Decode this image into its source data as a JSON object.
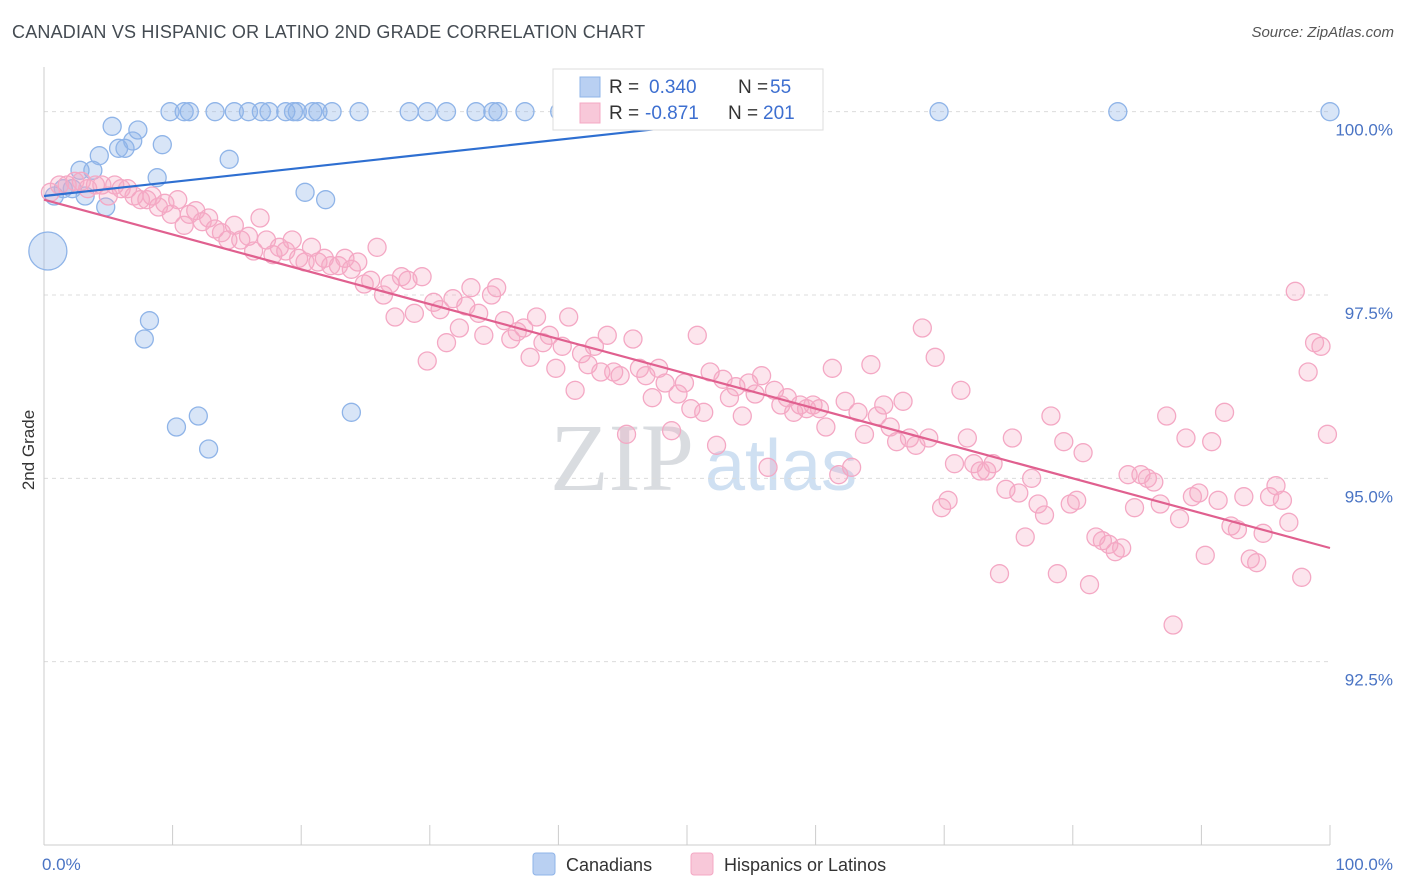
{
  "title": "CANADIAN VS HISPANIC OR LATINO 2ND GRADE CORRELATION CHART",
  "source": "Source: ZipAtlas.com",
  "watermark": {
    "zip": "ZIP",
    "atlas": "atlas"
  },
  "chart_data": {
    "type": "scatter",
    "ylabel": "2nd Grade",
    "xlim": [
      0,
      100
    ],
    "ylim": [
      90.0,
      100.5
    ],
    "x_tick_labels": [
      {
        "value": 0,
        "label": "0.0%"
      },
      {
        "value": 100,
        "label": "100.0%"
      }
    ],
    "y_ticks": [
      {
        "value": 100.0,
        "label": "100.0%"
      },
      {
        "value": 97.5,
        "label": "97.5%"
      },
      {
        "value": 95.0,
        "label": "95.0%"
      },
      {
        "value": 92.5,
        "label": "92.5%"
      }
    ],
    "grid": true,
    "legend_position": "bottom-center",
    "stats_box": [
      {
        "r_label": "R =",
        "r_value": "0.340",
        "n_label": "N =",
        "n_value": "55"
      },
      {
        "r_label": "R =",
        "r_value": "-0.871",
        "n_label": "N =",
        "n_value": "201"
      }
    ],
    "series": [
      {
        "name": "Canadians",
        "color": "#8fb4e8",
        "trend_color": "#2e6fd1",
        "trend": [
          [
            0,
            98.85
          ],
          [
            60,
            100.0
          ]
        ],
        "points": [
          [
            0.3,
            98.1,
            "large"
          ],
          [
            0.8,
            98.85
          ],
          [
            1.5,
            98.95
          ],
          [
            2.2,
            98.95
          ],
          [
            2.8,
            99.2
          ],
          [
            3.2,
            98.85
          ],
          [
            3.8,
            99.2
          ],
          [
            4.3,
            99.4
          ],
          [
            4.8,
            98.7
          ],
          [
            5.3,
            99.8
          ],
          [
            5.8,
            99.5
          ],
          [
            6.3,
            99.5
          ],
          [
            6.9,
            99.6
          ],
          [
            7.3,
            99.75
          ],
          [
            7.8,
            96.9
          ],
          [
            8.2,
            97.15
          ],
          [
            8.8,
            99.1
          ],
          [
            9.2,
            99.55
          ],
          [
            9.8,
            100.0
          ],
          [
            10.3,
            95.7
          ],
          [
            10.9,
            100.0
          ],
          [
            11.3,
            100.0
          ],
          [
            12.0,
            95.85
          ],
          [
            12.8,
            95.4
          ],
          [
            13.3,
            100.0
          ],
          [
            14.4,
            99.35
          ],
          [
            14.8,
            100.0
          ],
          [
            15.9,
            100.0
          ],
          [
            16.9,
            100.0
          ],
          [
            17.5,
            100.0
          ],
          [
            18.8,
            100.0
          ],
          [
            19.4,
            100.0
          ],
          [
            19.7,
            100.0
          ],
          [
            20.3,
            98.9
          ],
          [
            20.9,
            100.0
          ],
          [
            21.3,
            100.0
          ],
          [
            21.9,
            98.8
          ],
          [
            22.4,
            100.0
          ],
          [
            23.9,
            95.9
          ],
          [
            24.5,
            100.0
          ],
          [
            28.4,
            100.0
          ],
          [
            29.8,
            100.0
          ],
          [
            31.3,
            100.0
          ],
          [
            33.6,
            100.0
          ],
          [
            34.9,
            100.0
          ],
          [
            35.3,
            100.0
          ],
          [
            37.4,
            100.0
          ],
          [
            40.1,
            100.0
          ],
          [
            42.7,
            100.0
          ],
          [
            46.4,
            100.0
          ],
          [
            48.0,
            100.0
          ],
          [
            55.3,
            100.0
          ],
          [
            69.6,
            100.0
          ],
          [
            83.5,
            100.0
          ],
          [
            100.0,
            100.0
          ]
        ]
      },
      {
        "name": "Hispanics or Latinos",
        "color": "#f4a8c4",
        "trend_color": "#e0608f",
        "trend": [
          [
            0,
            98.8
          ],
          [
            100,
            94.05
          ]
        ],
        "points": [
          [
            0.5,
            98.9
          ],
          [
            1.2,
            99.0
          ],
          [
            1.8,
            99.0
          ],
          [
            2.4,
            99.05
          ],
          [
            2.9,
            99.05
          ],
          [
            3.4,
            98.95
          ],
          [
            4.0,
            99.0
          ],
          [
            4.5,
            99.0
          ],
          [
            5.0,
            98.85
          ],
          [
            5.5,
            99.0
          ],
          [
            6.0,
            98.95
          ],
          [
            6.5,
            98.95
          ],
          [
            7.0,
            98.85
          ],
          [
            7.5,
            98.8
          ],
          [
            8.0,
            98.8
          ],
          [
            8.4,
            98.85
          ],
          [
            8.9,
            98.7
          ],
          [
            9.4,
            98.75
          ],
          [
            9.9,
            98.6
          ],
          [
            10.4,
            98.8
          ],
          [
            10.9,
            98.45
          ],
          [
            11.3,
            98.6
          ],
          [
            11.8,
            98.65
          ],
          [
            12.3,
            98.5
          ],
          [
            12.8,
            98.55
          ],
          [
            13.3,
            98.4
          ],
          [
            13.8,
            98.35
          ],
          [
            14.3,
            98.25
          ],
          [
            14.8,
            98.45
          ],
          [
            15.3,
            98.25
          ],
          [
            15.9,
            98.3
          ],
          [
            16.3,
            98.1
          ],
          [
            16.8,
            98.55
          ],
          [
            17.3,
            98.25
          ],
          [
            17.8,
            98.05
          ],
          [
            18.3,
            98.15
          ],
          [
            18.8,
            98.1
          ],
          [
            19.3,
            98.25
          ],
          [
            19.8,
            98.0
          ],
          [
            20.3,
            97.95
          ],
          [
            20.8,
            98.15
          ],
          [
            21.3,
            97.95
          ],
          [
            21.8,
            98.0
          ],
          [
            22.3,
            97.9
          ],
          [
            22.9,
            97.9
          ],
          [
            23.4,
            98.0
          ],
          [
            23.9,
            97.85
          ],
          [
            24.4,
            97.95
          ],
          [
            24.9,
            97.65
          ],
          [
            25.4,
            97.7
          ],
          [
            25.9,
            98.15
          ],
          [
            26.4,
            97.5
          ],
          [
            26.9,
            97.65
          ],
          [
            27.3,
            97.2
          ],
          [
            27.8,
            97.75
          ],
          [
            28.3,
            97.7
          ],
          [
            28.8,
            97.25
          ],
          [
            29.4,
            97.75
          ],
          [
            29.8,
            96.6
          ],
          [
            30.3,
            97.4
          ],
          [
            30.8,
            97.3
          ],
          [
            31.3,
            96.85
          ],
          [
            31.8,
            97.45
          ],
          [
            32.3,
            97.05
          ],
          [
            32.8,
            97.35
          ],
          [
            33.2,
            97.6
          ],
          [
            33.8,
            97.25
          ],
          [
            34.2,
            96.95
          ],
          [
            34.8,
            97.5
          ],
          [
            35.2,
            97.6
          ],
          [
            35.8,
            97.15
          ],
          [
            36.3,
            96.9
          ],
          [
            36.8,
            97.0
          ],
          [
            37.3,
            97.05
          ],
          [
            37.8,
            96.65
          ],
          [
            38.3,
            97.2
          ],
          [
            38.8,
            96.85
          ],
          [
            39.3,
            96.95
          ],
          [
            39.8,
            96.5
          ],
          [
            40.3,
            96.8
          ],
          [
            40.8,
            97.2
          ],
          [
            41.3,
            96.2
          ],
          [
            41.8,
            96.7
          ],
          [
            42.3,
            96.55
          ],
          [
            42.8,
            96.8
          ],
          [
            43.3,
            96.45
          ],
          [
            43.8,
            96.95
          ],
          [
            44.3,
            96.45
          ],
          [
            44.8,
            96.4
          ],
          [
            45.3,
            95.6
          ],
          [
            45.8,
            96.9
          ],
          [
            46.3,
            96.5
          ],
          [
            46.8,
            96.4
          ],
          [
            47.3,
            96.1
          ],
          [
            47.8,
            96.5
          ],
          [
            48.3,
            96.3
          ],
          [
            48.8,
            95.65
          ],
          [
            49.3,
            96.15
          ],
          [
            49.8,
            96.3
          ],
          [
            50.3,
            95.95
          ],
          [
            50.8,
            96.95
          ],
          [
            51.3,
            95.9
          ],
          [
            51.8,
            96.45
          ],
          [
            52.3,
            95.45
          ],
          [
            52.8,
            96.35
          ],
          [
            53.3,
            96.1
          ],
          [
            53.8,
            96.25
          ],
          [
            54.3,
            95.85
          ],
          [
            54.8,
            96.3
          ],
          [
            55.3,
            96.15
          ],
          [
            55.8,
            96.4
          ],
          [
            56.3,
            95.15
          ],
          [
            56.8,
            96.2
          ],
          [
            57.3,
            96.0
          ],
          [
            57.8,
            96.1
          ],
          [
            58.3,
            95.9
          ],
          [
            58.8,
            96.0
          ],
          [
            59.3,
            95.95
          ],
          [
            59.8,
            96.0
          ],
          [
            60.3,
            95.95
          ],
          [
            60.8,
            95.7
          ],
          [
            61.3,
            96.5
          ],
          [
            61.8,
            95.05
          ],
          [
            62.3,
            96.05
          ],
          [
            62.8,
            95.15
          ],
          [
            63.3,
            95.9
          ],
          [
            63.8,
            95.6
          ],
          [
            64.3,
            96.55
          ],
          [
            64.8,
            95.85
          ],
          [
            65.3,
            96.0
          ],
          [
            65.8,
            95.7
          ],
          [
            66.3,
            95.5
          ],
          [
            66.8,
            96.05
          ],
          [
            67.3,
            95.55
          ],
          [
            67.8,
            95.45
          ],
          [
            68.3,
            97.05
          ],
          [
            68.8,
            95.55
          ],
          [
            69.3,
            96.65
          ],
          [
            69.8,
            94.6
          ],
          [
            70.3,
            94.7
          ],
          [
            70.8,
            95.2
          ],
          [
            71.3,
            96.2
          ],
          [
            71.8,
            95.55
          ],
          [
            72.3,
            95.2
          ],
          [
            72.8,
            95.1
          ],
          [
            73.3,
            95.1
          ],
          [
            73.8,
            95.2
          ],
          [
            74.3,
            93.7
          ],
          [
            74.8,
            94.85
          ],
          [
            75.3,
            95.55
          ],
          [
            75.8,
            94.8
          ],
          [
            76.3,
            94.2
          ],
          [
            76.8,
            95.0
          ],
          [
            77.3,
            94.65
          ],
          [
            77.8,
            94.5
          ],
          [
            78.3,
            95.85
          ],
          [
            78.8,
            93.7
          ],
          [
            79.3,
            95.5
          ],
          [
            79.8,
            94.65
          ],
          [
            80.3,
            94.7
          ],
          [
            80.8,
            95.35
          ],
          [
            81.3,
            93.55
          ],
          [
            81.8,
            94.2
          ],
          [
            82.3,
            94.15
          ],
          [
            82.8,
            94.1
          ],
          [
            83.3,
            94.0
          ],
          [
            83.8,
            94.05
          ],
          [
            84.3,
            95.05
          ],
          [
            84.8,
            94.6
          ],
          [
            85.3,
            95.05
          ],
          [
            85.8,
            95.0
          ],
          [
            86.3,
            94.95
          ],
          [
            86.8,
            94.65
          ],
          [
            87.3,
            95.85
          ],
          [
            87.8,
            93.0
          ],
          [
            88.3,
            94.45
          ],
          [
            88.8,
            95.55
          ],
          [
            89.3,
            94.75
          ],
          [
            89.8,
            94.8
          ],
          [
            90.3,
            93.95
          ],
          [
            90.8,
            95.5
          ],
          [
            91.3,
            94.7
          ],
          [
            91.8,
            95.9
          ],
          [
            92.3,
            94.35
          ],
          [
            92.8,
            94.3
          ],
          [
            93.3,
            94.75
          ],
          [
            93.8,
            93.9
          ],
          [
            94.3,
            93.85
          ],
          [
            94.8,
            94.25
          ],
          [
            95.3,
            94.75
          ],
          [
            95.8,
            94.9
          ],
          [
            96.3,
            94.7
          ],
          [
            96.8,
            94.4
          ],
          [
            97.3,
            97.55
          ],
          [
            97.8,
            93.65
          ],
          [
            98.3,
            96.45
          ],
          [
            98.8,
            96.85
          ],
          [
            99.3,
            96.8
          ],
          [
            99.8,
            95.6
          ]
        ]
      }
    ]
  }
}
